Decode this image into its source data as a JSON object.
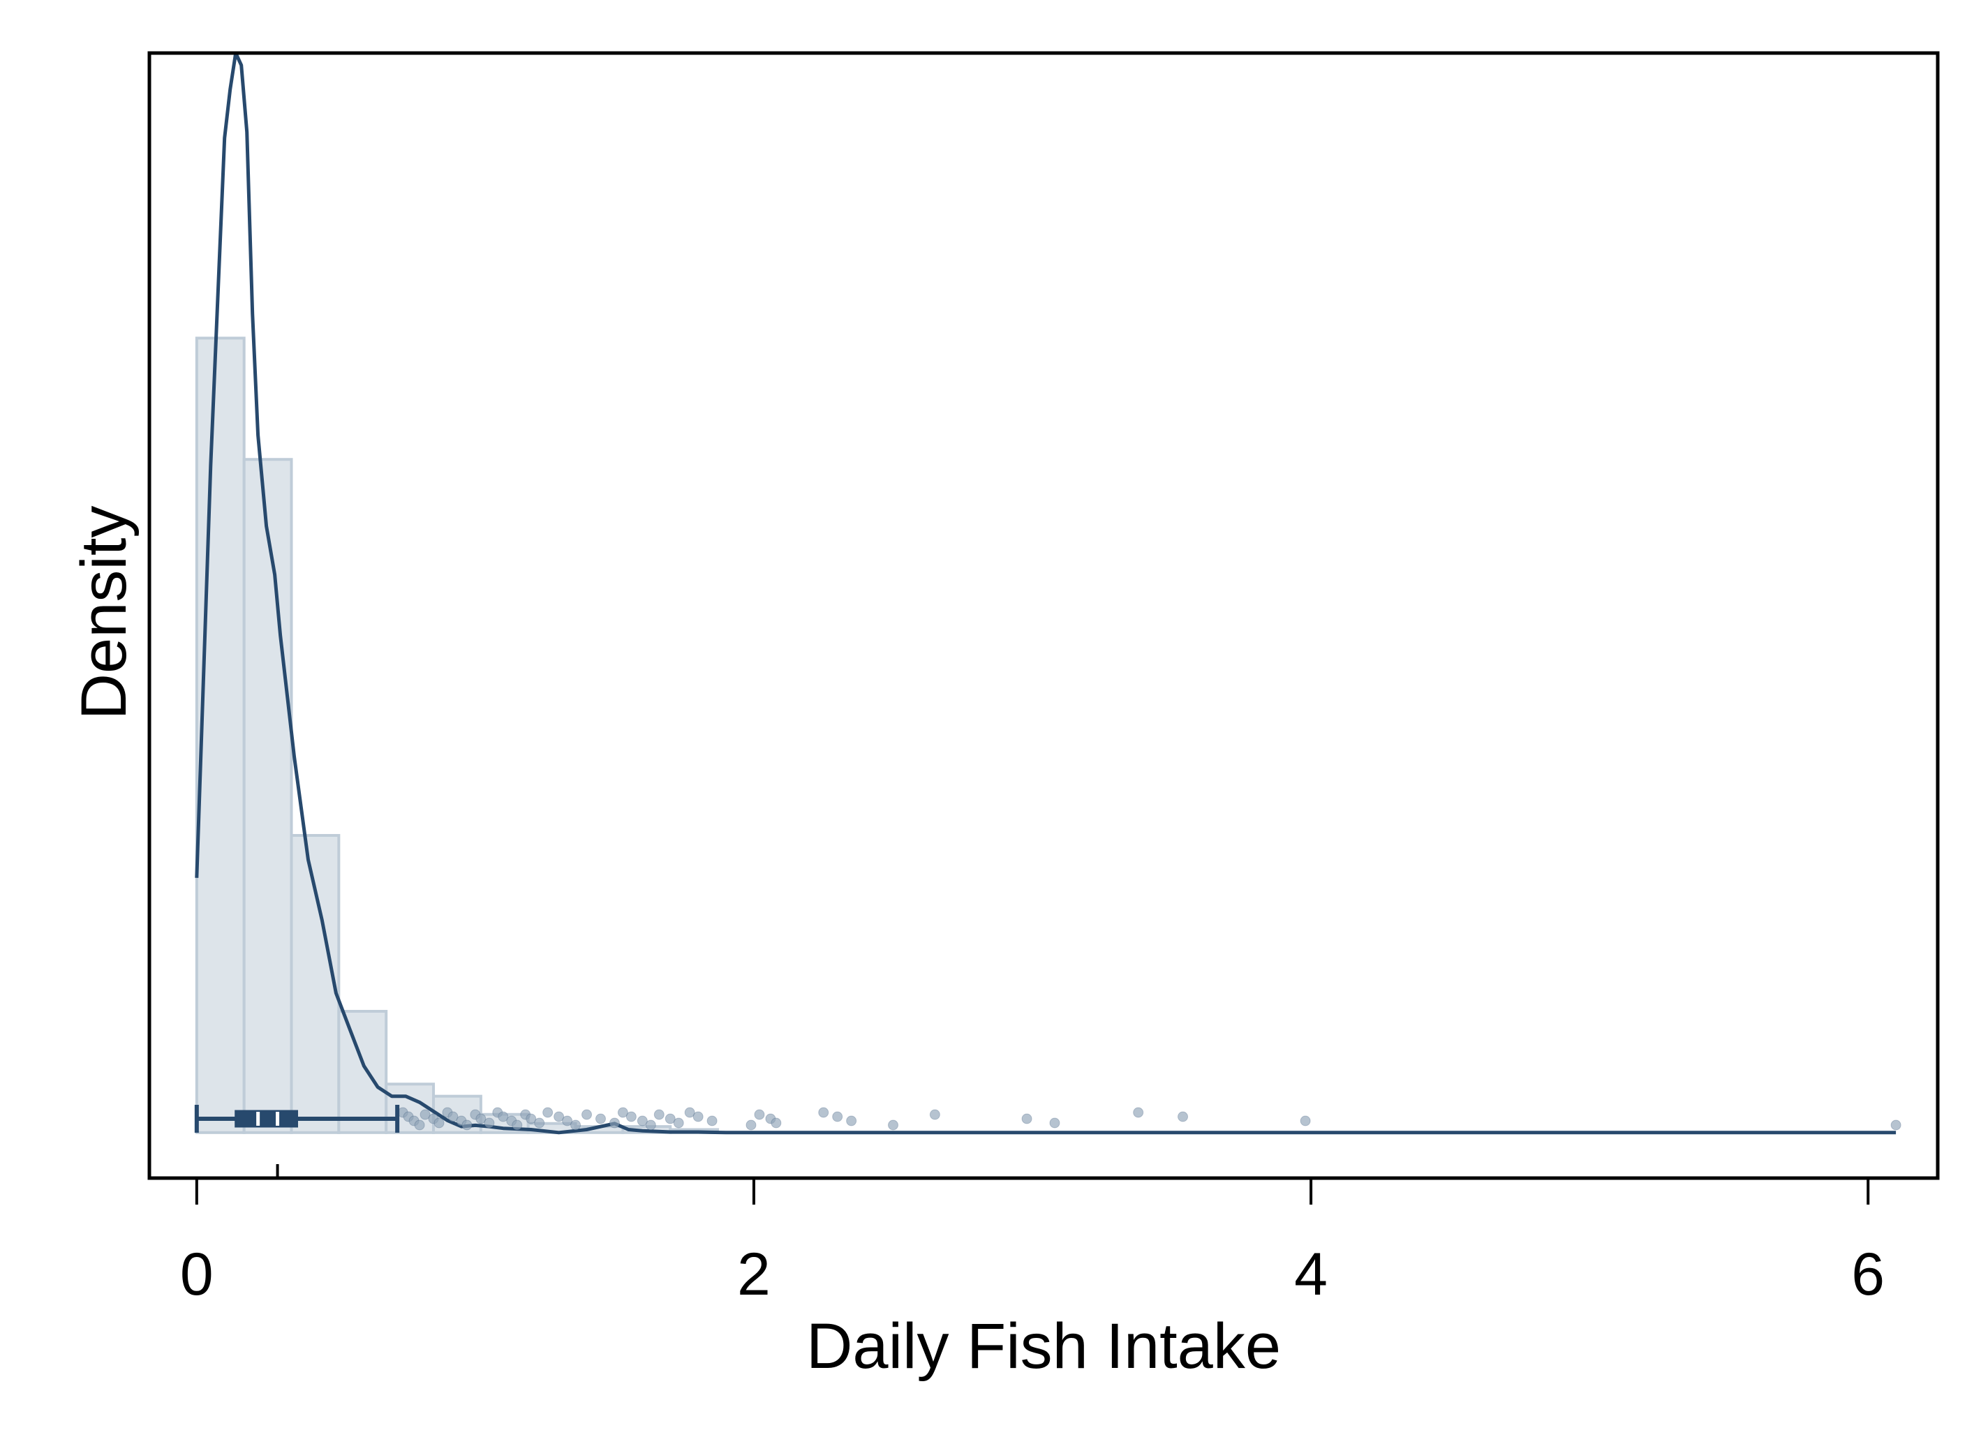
{
  "chart_data": {
    "type": "histogram",
    "title": "",
    "xlabel": "Daily Fish Intake",
    "ylabel": "Density",
    "xlim": [
      -0.17,
      6.25
    ],
    "ylim": [
      -0.075,
      1.78
    ],
    "x_ticks": [
      0,
      2,
      4,
      6
    ],
    "x_tick_labels": [
      "0",
      "2",
      "4",
      "6"
    ],
    "y_ticks_shown": false,
    "grid": false,
    "legend": "none",
    "colors": {
      "line": "#27496d",
      "bar_fill": "#dde4ea",
      "bar_edge": "#bfccd8",
      "scatter": "#8fa3b7",
      "axis": "#000000"
    },
    "histogram": {
      "bin_width": 0.17,
      "bins": [
        {
          "x0": 0.0,
          "x1": 0.17,
          "density": 1.31
        },
        {
          "x0": 0.17,
          "x1": 0.34,
          "density": 1.11
        },
        {
          "x0": 0.34,
          "x1": 0.51,
          "density": 0.49
        },
        {
          "x0": 0.51,
          "x1": 0.68,
          "density": 0.2
        },
        {
          "x0": 0.68,
          "x1": 0.85,
          "density": 0.08
        },
        {
          "x0": 0.85,
          "x1": 1.02,
          "density": 0.06
        },
        {
          "x0": 1.02,
          "x1": 1.19,
          "density": 0.03
        },
        {
          "x0": 1.19,
          "x1": 1.36,
          "density": 0.015
        },
        {
          "x0": 1.36,
          "x1": 1.53,
          "density": 0.01
        },
        {
          "x0": 1.53,
          "x1": 1.7,
          "density": 0.01
        },
        {
          "x0": 1.7,
          "x1": 1.87,
          "density": 0.005
        }
      ]
    },
    "kde": {
      "x": [
        0.0,
        0.05,
        0.1,
        0.12,
        0.14,
        0.16,
        0.18,
        0.2,
        0.22,
        0.25,
        0.28,
        0.3,
        0.35,
        0.4,
        0.45,
        0.5,
        0.55,
        0.6,
        0.65,
        0.7,
        0.75,
        0.8,
        0.85,
        0.9,
        0.95,
        1.0,
        1.05,
        1.1,
        1.15,
        1.2,
        1.3,
        1.4,
        1.5,
        1.55,
        1.6,
        1.65,
        1.7,
        1.8,
        1.9,
        2.0,
        2.2,
        2.5,
        3.0,
        4.0,
        5.0,
        6.1
      ],
      "y": [
        0.42,
        1.1,
        1.64,
        1.72,
        1.78,
        1.76,
        1.65,
        1.35,
        1.15,
        1.0,
        0.92,
        0.82,
        0.62,
        0.45,
        0.35,
        0.23,
        0.17,
        0.11,
        0.075,
        0.06,
        0.06,
        0.05,
        0.035,
        0.02,
        0.01,
        0.012,
        0.01,
        0.007,
        0.006,
        0.005,
        0.0,
        0.005,
        0.015,
        0.005,
        0.003,
        0.002,
        0.001,
        0.001,
        0.0,
        0.0,
        0.0,
        0.0,
        0.0,
        0.0,
        0.0,
        0.0
      ]
    },
    "boxplot": {
      "min": 0.0,
      "q1": 0.14,
      "median": 0.22,
      "mean": 0.29,
      "q3": 0.36,
      "whisker_high": 0.72,
      "outliers": [
        0.74,
        0.76,
        0.78,
        0.8,
        0.82,
        0.85,
        0.87,
        0.9,
        0.92,
        0.95,
        0.97,
        1.0,
        1.02,
        1.05,
        1.08,
        1.1,
        1.13,
        1.15,
        1.18,
        1.2,
        1.23,
        1.26,
        1.3,
        1.33,
        1.36,
        1.4,
        1.45,
        1.5,
        1.53,
        1.56,
        1.6,
        1.63,
        1.66,
        1.7,
        1.73,
        1.77,
        1.8,
        1.85,
        1.99,
        2.02,
        2.06,
        2.08,
        2.25,
        2.3,
        2.35,
        2.5,
        2.65,
        2.98,
        3.08,
        3.38,
        3.54,
        3.98,
        6.1
      ]
    }
  }
}
